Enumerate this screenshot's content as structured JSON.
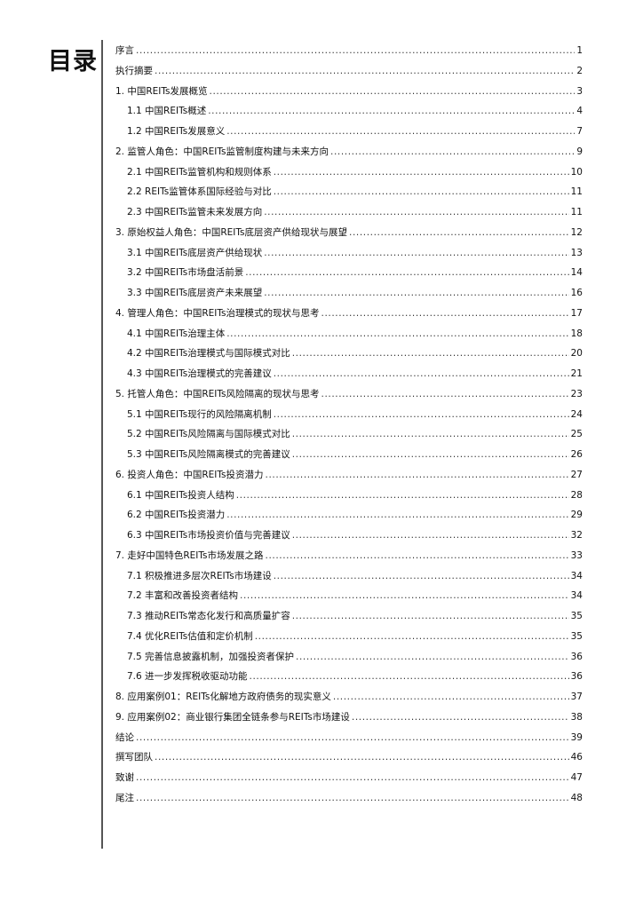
{
  "title": "目录",
  "entries": [
    {
      "label": "序言",
      "page": "1",
      "level": 1
    },
    {
      "label": "执行摘要",
      "page": "2",
      "level": 1
    },
    {
      "label": "1. 中国REITs发展概览",
      "page": "3",
      "level": 1
    },
    {
      "label": "1.1 中国REITs概述",
      "page": "4",
      "level": 2
    },
    {
      "label": "1.2 中国REITs发展意义",
      "page": "7",
      "level": 2
    },
    {
      "label": "2. 监管人角色：中国REITs监管制度构建与未来方向",
      "page": "9",
      "level": 1
    },
    {
      "label": "2.1 中国REITs监管机构和规则体系",
      "page": "10",
      "level": 2
    },
    {
      "label": "2.2 REITs监管体系国际经验与对比",
      "page": "11",
      "level": 2
    },
    {
      "label": "2.3 中国REITs监管未来发展方向",
      "page": "11",
      "level": 2
    },
    {
      "label": "3. 原始权益人角色：中国REITs底层资产供给现状与展望",
      "page": "12",
      "level": 1
    },
    {
      "label": "3.1 中国REITs底层资产供给现状",
      "page": "13",
      "level": 2
    },
    {
      "label": "3.2 中国REITs市场盘活前景",
      "page": "14",
      "level": 2
    },
    {
      "label": "3.3 中国REITs底层资产未来展望",
      "page": "16",
      "level": 2
    },
    {
      "label": "4. 管理人角色：中国REITs治理模式的现状与思考",
      "page": "17",
      "level": 1
    },
    {
      "label": "4.1 中国REITs治理主体",
      "page": "18",
      "level": 2
    },
    {
      "label": "4.2 中国REITs治理模式与国际模式对比",
      "page": "20",
      "level": 2
    },
    {
      "label": "4.3 中国REITs治理模式的完善建议",
      "page": "21",
      "level": 2
    },
    {
      "label": "5. 托管人角色：中国REITs风险隔离的现状与思考",
      "page": "23",
      "level": 1
    },
    {
      "label": "5.1 中国REITs现行的风险隔离机制",
      "page": "24",
      "level": 2
    },
    {
      "label": "5.2 中国REITs风险隔离与国际模式对比",
      "page": "25",
      "level": 2
    },
    {
      "label": "5.3 中国REITs风险隔离模式的完善建议",
      "page": "26",
      "level": 2
    },
    {
      "label": "6. 投资人角色：中国REITs投资潜力",
      "page": "27",
      "level": 1
    },
    {
      "label": "6.1 中国REITs投资人结构",
      "page": "28",
      "level": 2
    },
    {
      "label": "6.2 中国REITs投资潜力",
      "page": "29",
      "level": 2
    },
    {
      "label": "6.3 中国REITs市场投资价值与完善建议",
      "page": "32",
      "level": 2
    },
    {
      "label": "7. 走好中国特色REITs市场发展之路",
      "page": "33",
      "level": 1
    },
    {
      "label": "7.1 积极推进多层次REITs市场建设",
      "page": "34",
      "level": 2
    },
    {
      "label": "7.2 丰富和改善投资者结构",
      "page": "34",
      "level": 2
    },
    {
      "label": "7.3 推动REITs常态化发行和高质量扩容",
      "page": "35",
      "level": 2
    },
    {
      "label": "7.4 优化REITs估值和定价机制",
      "page": "35",
      "level": 2
    },
    {
      "label": "7.5 完善信息披露机制，加强投资者保护",
      "page": "36",
      "level": 2
    },
    {
      "label": "7.6 进一步发挥税收驱动功能",
      "page": "36",
      "level": 2
    },
    {
      "label": "8. 应用案例01：REITs化解地方政府债务的现实意义",
      "page": "37",
      "level": 1
    },
    {
      "label": "9. 应用案例02：商业银行集团全链条参与REITs市场建设",
      "page": "38",
      "level": 1
    },
    {
      "label": "结论",
      "page": "39",
      "level": 1
    },
    {
      "label": "撰写团队",
      "page": "46",
      "level": 1
    },
    {
      "label": "致谢",
      "page": "47",
      "level": 1
    },
    {
      "label": "尾注",
      "page": "48",
      "level": 1
    }
  ]
}
